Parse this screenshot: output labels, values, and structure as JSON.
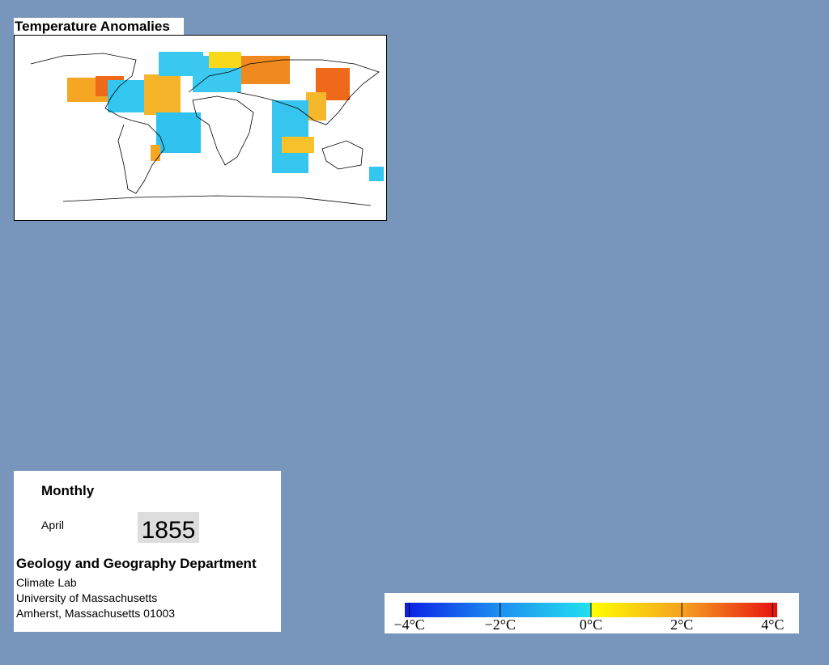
{
  "map": {
    "title": "Temperature Anomalies"
  },
  "info": {
    "heading": "Monthly",
    "month": "April",
    "year": 1855,
    "department": "Geology and Geography Department",
    "lines": [
      "Climate Lab",
      "University of Massachusetts",
      "Amherst, Massachusetts 01003"
    ]
  },
  "colorbar": {
    "lim": [
      -4.1,
      4.1
    ],
    "ticks": [
      {
        "value": -4,
        "label": "−4°C"
      },
      {
        "value": -2,
        "label": "−2°C"
      },
      {
        "value": 0,
        "label": "0°C"
      },
      {
        "value": 2,
        "label": "2°C"
      },
      {
        "value": 4,
        "label": "4°C"
      }
    ]
  }
}
